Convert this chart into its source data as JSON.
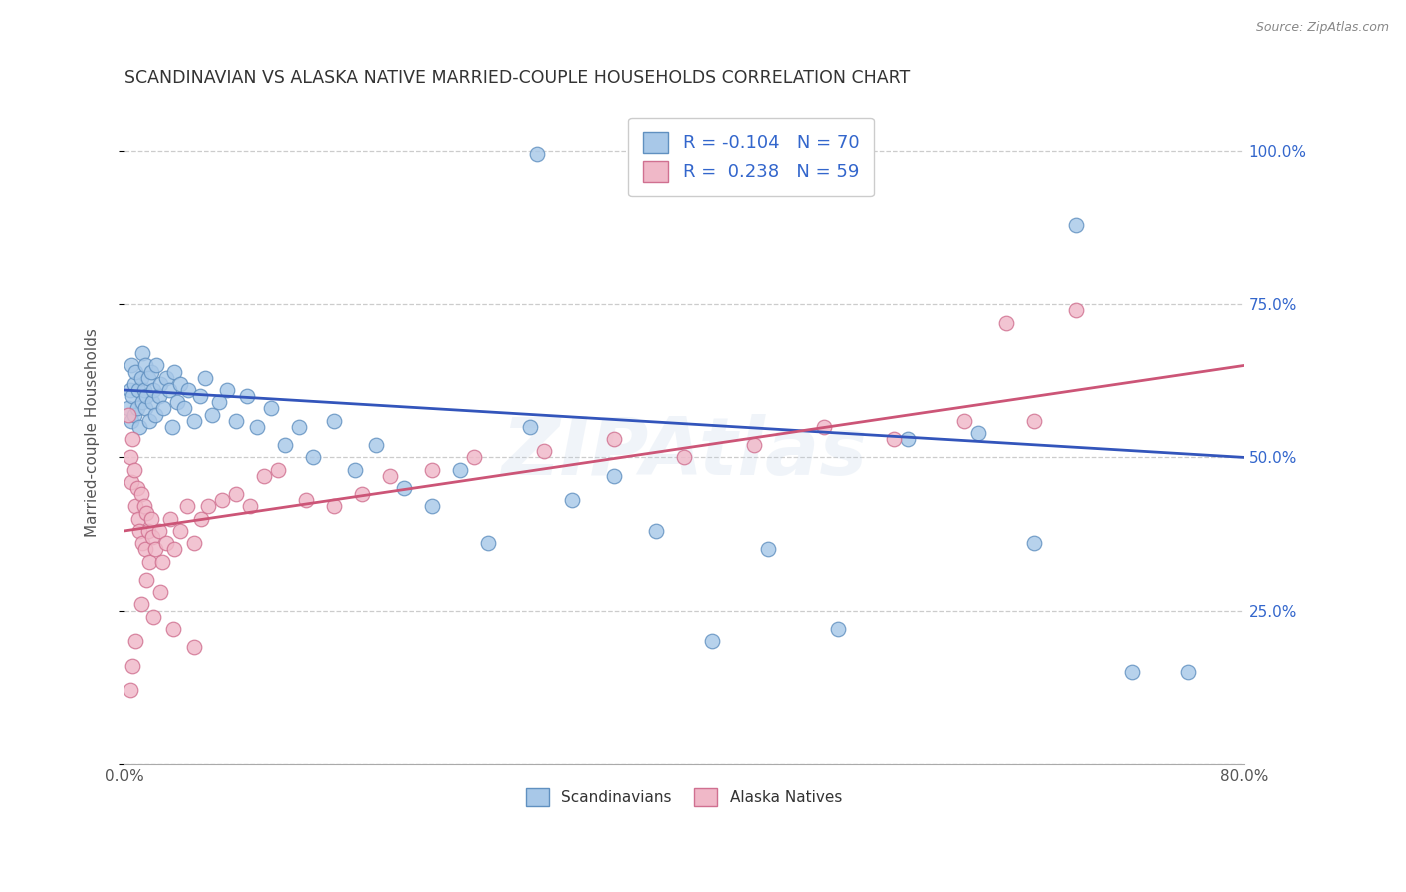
{
  "title": "SCANDINAVIAN VS ALASKA NATIVE MARRIED-COUPLE HOUSEHOLDS CORRELATION CHART",
  "source": "Source: ZipAtlas.com",
  "ylabel": "Married-couple Households",
  "blue_color": "#a8c8e8",
  "pink_color": "#f0b8c8",
  "blue_edge_color": "#6090c0",
  "pink_edge_color": "#d07090",
  "blue_line_color": "#3355bb",
  "pink_line_color": "#cc5577",
  "watermark": "ZIPAtlas",
  "R_blue": -0.104,
  "N_blue": 70,
  "R_pink": 0.238,
  "N_pink": 59,
  "legend_R_blue": "-0.104",
  "legend_N_blue": "70",
  "legend_R_pink": "0.238",
  "legend_N_pink": "59",
  "xlim": [
    0.0,
    0.8
  ],
  "ylim": [
    0.0,
    1.08
  ],
  "right_ytick_labels": [
    "",
    "25.0%",
    "50.0%",
    "75.0%",
    "100.0%"
  ],
  "right_ytick_color": "#3366cc",
  "title_color": "#333333",
  "source_color": "#888888",
  "grid_color": "#cccccc",
  "background": "#ffffff",
  "blue_line_y0": 0.61,
  "blue_line_y1": 0.5,
  "pink_line_y0": 0.38,
  "pink_line_y1": 0.65,
  "blue_x": [
    0.003,
    0.004,
    0.005,
    0.005,
    0.006,
    0.007,
    0.007,
    0.008,
    0.009,
    0.01,
    0.011,
    0.012,
    0.013,
    0.013,
    0.014,
    0.015,
    0.015,
    0.016,
    0.017,
    0.018,
    0.019,
    0.02,
    0.021,
    0.022,
    0.023,
    0.025,
    0.026,
    0.028,
    0.03,
    0.032,
    0.034,
    0.036,
    0.038,
    0.04,
    0.043,
    0.046,
    0.05,
    0.054,
    0.058,
    0.063,
    0.068,
    0.074,
    0.08,
    0.088,
    0.095,
    0.105,
    0.115,
    0.125,
    0.135,
    0.15,
    0.165,
    0.18,
    0.2,
    0.22,
    0.24,
    0.26,
    0.29,
    0.32,
    0.35,
    0.38,
    0.295,
    0.42,
    0.46,
    0.51,
    0.56,
    0.61,
    0.65,
    0.68,
    0.72,
    0.76
  ],
  "blue_y": [
    0.58,
    0.61,
    0.56,
    0.65,
    0.6,
    0.62,
    0.57,
    0.64,
    0.58,
    0.61,
    0.55,
    0.63,
    0.59,
    0.67,
    0.61,
    0.58,
    0.65,
    0.6,
    0.63,
    0.56,
    0.64,
    0.59,
    0.61,
    0.57,
    0.65,
    0.6,
    0.62,
    0.58,
    0.63,
    0.61,
    0.55,
    0.64,
    0.59,
    0.62,
    0.58,
    0.61,
    0.56,
    0.6,
    0.63,
    0.57,
    0.59,
    0.61,
    0.56,
    0.6,
    0.55,
    0.58,
    0.52,
    0.55,
    0.5,
    0.56,
    0.48,
    0.52,
    0.45,
    0.42,
    0.48,
    0.36,
    0.55,
    0.43,
    0.47,
    0.38,
    0.995,
    0.2,
    0.35,
    0.22,
    0.53,
    0.54,
    0.36,
    0.88,
    0.15,
    0.15
  ],
  "pink_x": [
    0.003,
    0.004,
    0.005,
    0.006,
    0.007,
    0.008,
    0.009,
    0.01,
    0.011,
    0.012,
    0.013,
    0.014,
    0.015,
    0.016,
    0.017,
    0.018,
    0.019,
    0.02,
    0.022,
    0.025,
    0.027,
    0.03,
    0.033,
    0.036,
    0.04,
    0.045,
    0.05,
    0.055,
    0.06,
    0.07,
    0.08,
    0.09,
    0.1,
    0.11,
    0.13,
    0.15,
    0.17,
    0.19,
    0.22,
    0.25,
    0.3,
    0.35,
    0.4,
    0.45,
    0.5,
    0.55,
    0.6,
    0.63,
    0.65,
    0.68,
    0.004,
    0.006,
    0.008,
    0.012,
    0.016,
    0.021,
    0.026,
    0.035,
    0.05
  ],
  "pink_y": [
    0.57,
    0.5,
    0.46,
    0.53,
    0.48,
    0.42,
    0.45,
    0.4,
    0.38,
    0.44,
    0.36,
    0.42,
    0.35,
    0.41,
    0.38,
    0.33,
    0.4,
    0.37,
    0.35,
    0.38,
    0.33,
    0.36,
    0.4,
    0.35,
    0.38,
    0.42,
    0.36,
    0.4,
    0.42,
    0.43,
    0.44,
    0.42,
    0.47,
    0.48,
    0.43,
    0.42,
    0.44,
    0.47,
    0.48,
    0.5,
    0.51,
    0.53,
    0.5,
    0.52,
    0.55,
    0.53,
    0.56,
    0.72,
    0.56,
    0.74,
    0.12,
    0.16,
    0.2,
    0.26,
    0.3,
    0.24,
    0.28,
    0.22,
    0.19
  ]
}
